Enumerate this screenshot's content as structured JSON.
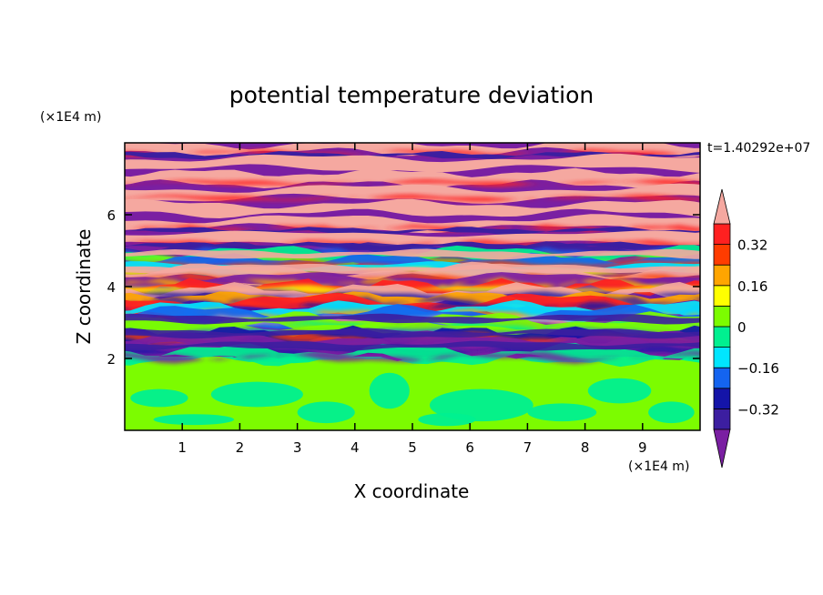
{
  "chart_data": {
    "type": "heatmap",
    "title": "potential temperature deviation",
    "xlabel": "X coordinate",
    "ylabel": "Z coordinate",
    "x_unit": "(×1E4 m)",
    "y_unit": "(×1E4 m)",
    "time_label": "t=1.40292e+07",
    "xlim": [
      0,
      10
    ],
    "ylim": [
      0,
      8
    ],
    "x_ticks": [
      1,
      2,
      3,
      4,
      5,
      6,
      7,
      8,
      9
    ],
    "y_ticks": [
      2,
      4,
      6
    ],
    "colorbar": {
      "levels": [
        -0.4,
        -0.32,
        -0.24,
        -0.16,
        -0.08,
        0,
        0.08,
        0.16,
        0.24,
        0.32,
        0.4
      ],
      "labels": [
        "0.32",
        "0.16",
        "0",
        "−0.16",
        "−0.32"
      ],
      "label_values": [
        0.32,
        0.16,
        0,
        -0.16,
        -0.32
      ],
      "colors": [
        "#7a1fa2",
        "#3c1ea0",
        "#1414a8",
        "#1464f0",
        "#00e6ff",
        "#00f090",
        "#7cfc00",
        "#ffff00",
        "#ffa500",
        "#ff3c00",
        "#ff2020",
        "#f5a8a0"
      ],
      "extend": "both"
    }
  }
}
